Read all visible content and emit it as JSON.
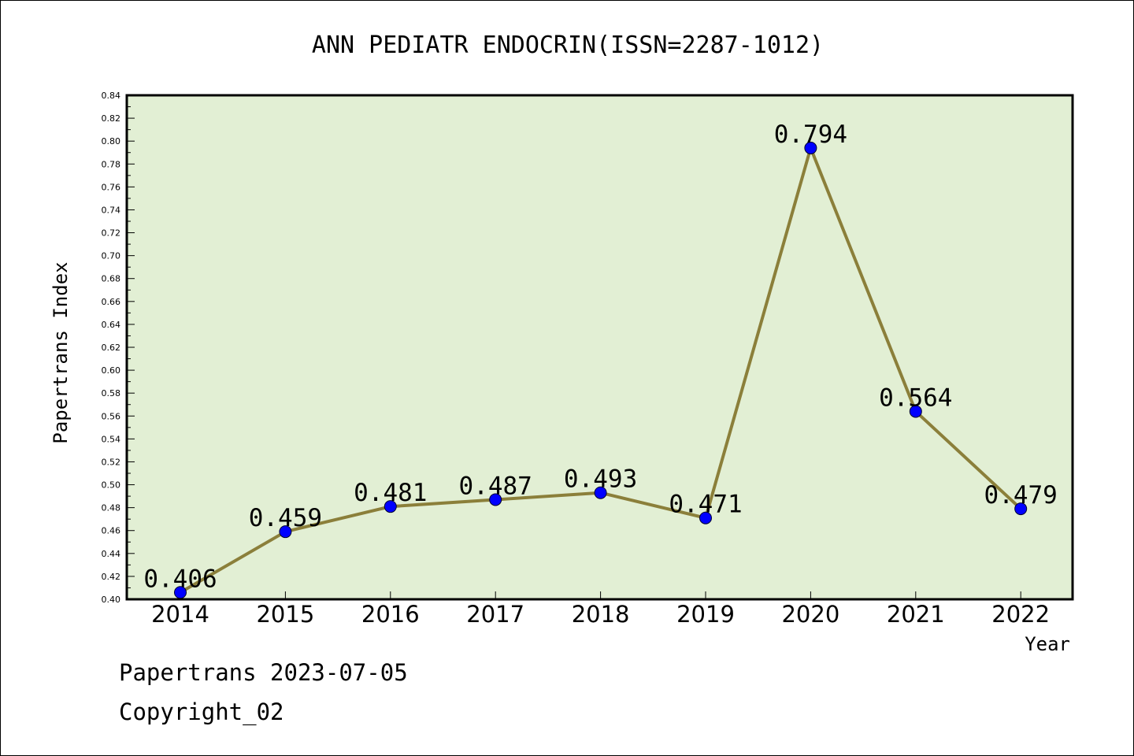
{
  "chart_data": {
    "type": "line",
    "title": "ANN PEDIATR ENDOCRIN(ISSN=2287-1012)",
    "xlabel": "Year",
    "ylabel": "Papertrans Index",
    "categories": [
      "2014",
      "2015",
      "2016",
      "2017",
      "2018",
      "2019",
      "2020",
      "2021",
      "2022"
    ],
    "values": [
      0.406,
      0.459,
      0.481,
      0.487,
      0.493,
      0.471,
      0.794,
      0.564,
      0.479
    ],
    "data_labels": [
      "0.406",
      "0.459",
      "0.481",
      "0.487",
      "0.493",
      "0.471",
      "0.794",
      "0.564",
      "0.479"
    ],
    "ylim": [
      0.4,
      0.84
    ],
    "yticks": [
      "0.40",
      "0.42",
      "0.44",
      "0.46",
      "0.48",
      "0.50",
      "0.52",
      "0.54",
      "0.56",
      "0.58",
      "0.60",
      "0.62",
      "0.64",
      "0.66",
      "0.68",
      "0.70",
      "0.72",
      "0.74",
      "0.76",
      "0.78",
      "0.80",
      "0.82",
      "0.84"
    ],
    "grid": false,
    "colors": {
      "plot_background": "#e2efd4",
      "line": "#8b7f3a",
      "marker": "#0000ff",
      "frame": "#000000"
    }
  },
  "footer": {
    "date_line": "Papertrans 2023-07-05",
    "copyright_line": "Copyright_02"
  }
}
